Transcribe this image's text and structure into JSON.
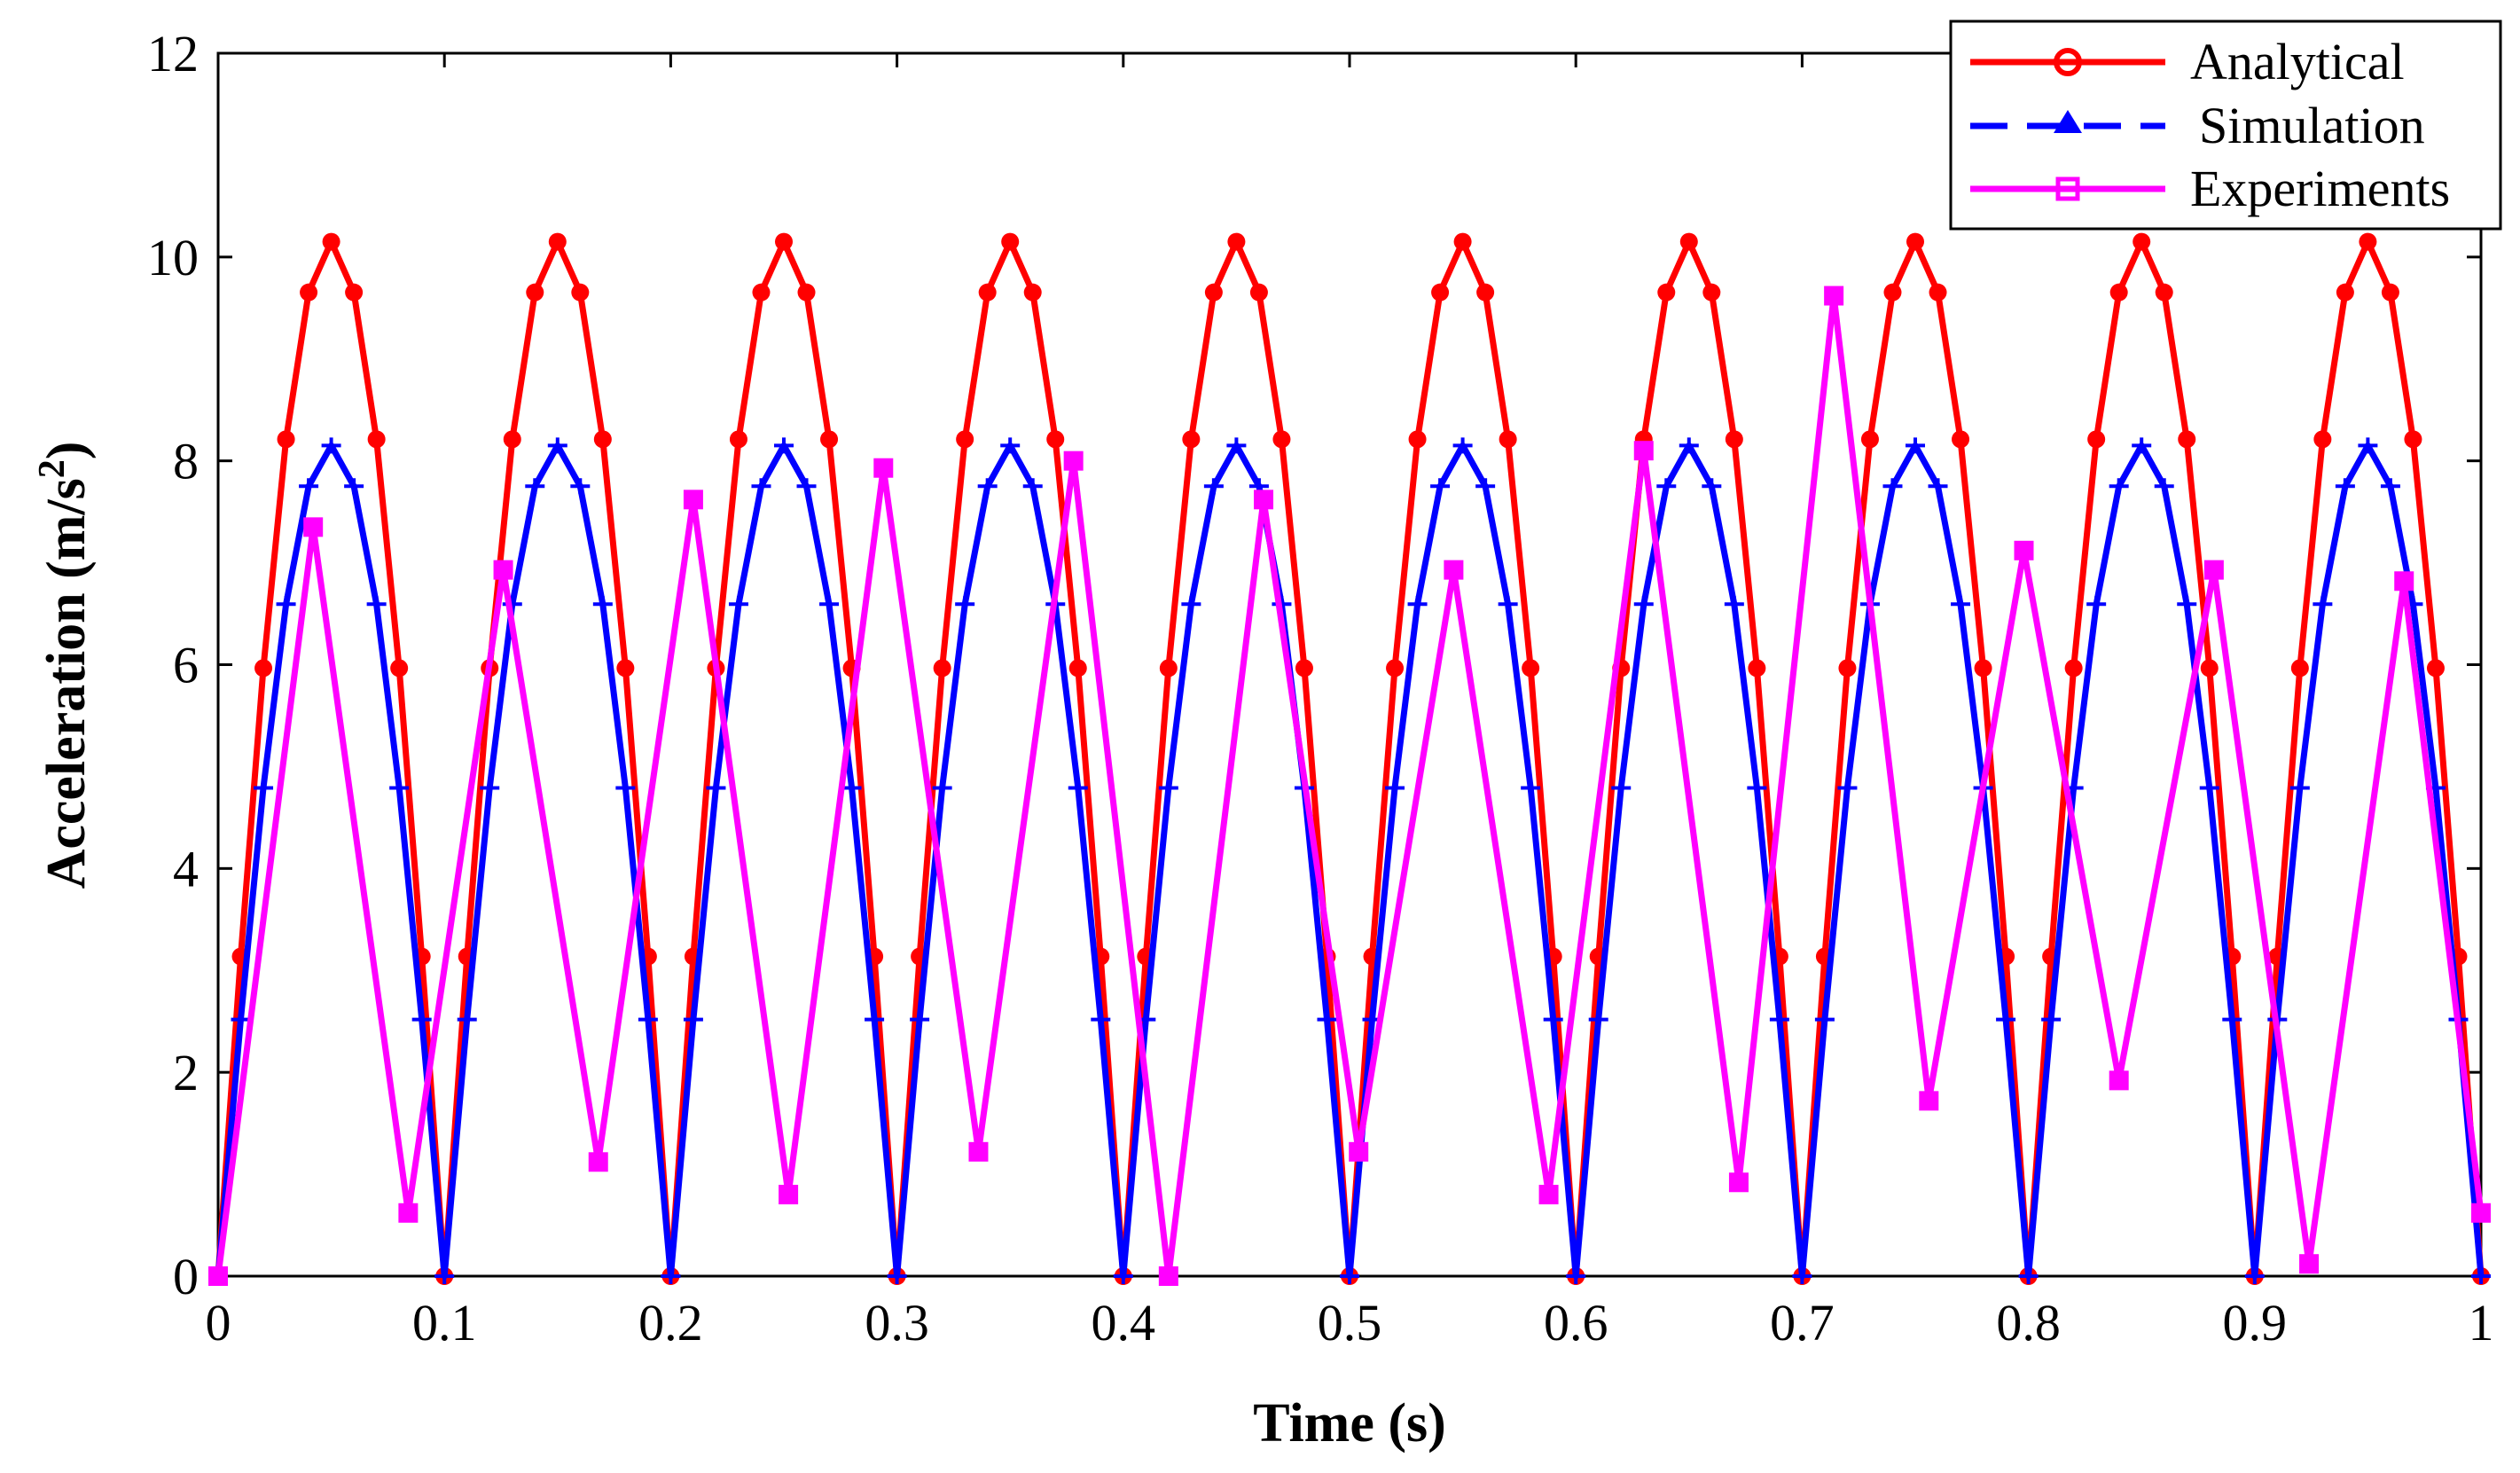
{
  "chart_data": {
    "type": "line",
    "title": "",
    "xlabel": "Time (s)",
    "ylabel_main": "Acceleration (m/s",
    "ylabel_sup": "2",
    "ylabel_end": ")",
    "xlim": [
      0,
      1
    ],
    "ylim": [
      0,
      12
    ],
    "xticks": [
      0,
      0.1,
      0.2,
      0.3,
      0.4,
      0.5,
      0.6,
      0.7,
      0.8,
      0.9,
      1
    ],
    "xtick_labels": [
      "0",
      "0.1",
      "0.2",
      "0.3",
      "0.4",
      "0.5",
      "0.6",
      "0.7",
      "0.8",
      "0.9",
      "1"
    ],
    "yticks": [
      0,
      2,
      4,
      6,
      8,
      10,
      12
    ],
    "ytick_labels": [
      "0",
      "2",
      "4",
      "6",
      "8",
      "10",
      "12"
    ],
    "grid": false,
    "legend_position": "top-right",
    "series": [
      {
        "name": "Analytical",
        "color": "#ff0000",
        "marker": "circle",
        "peak": 10.15,
        "period": 0.1,
        "phase": 0,
        "samples_per_cycle": 10
      },
      {
        "name": "Simulation",
        "color": "#0000ff",
        "marker": "triangle",
        "peak": 8.15,
        "period": 0.1,
        "phase": 0,
        "samples_per_cycle": 10
      },
      {
        "name": "Experiments",
        "color": "#ff00ff",
        "marker": "square",
        "x": [
          0,
          0.042,
          0.084,
          0.126,
          0.168,
          0.21,
          0.252,
          0.294,
          0.336,
          0.378,
          0.42,
          0.462,
          0.504,
          0.546,
          0.588,
          0.63,
          0.672,
          0.714,
          0.756,
          0.798,
          0.84,
          0.882,
          0.924,
          0.966,
          1.0
        ],
        "y": [
          0,
          7.35,
          0.62,
          6.93,
          1.12,
          7.62,
          0.8,
          7.93,
          1.22,
          8.0,
          0,
          7.62,
          1.22,
          6.93,
          0.8,
          8.1,
          0.92,
          9.62,
          1.72,
          7.12,
          1.92,
          6.93,
          0.12,
          6.82,
          0.62
        ]
      }
    ]
  }
}
